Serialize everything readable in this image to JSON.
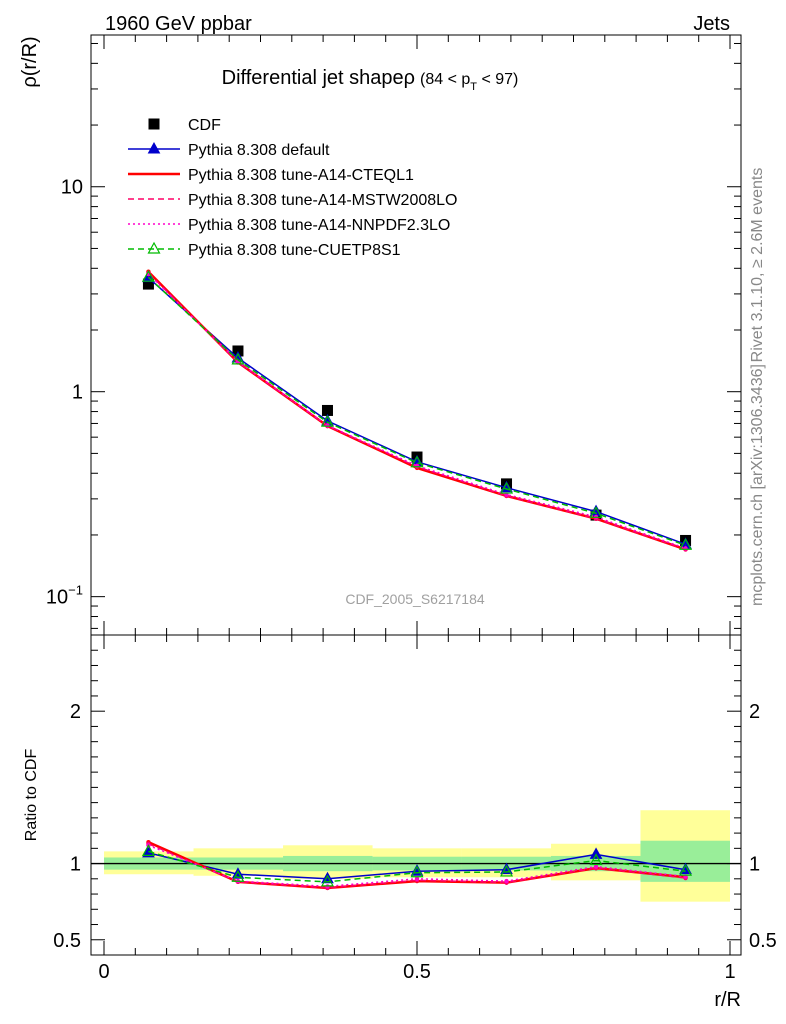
{
  "header": {
    "left": "1960 GeV ppbar",
    "right": "Jets"
  },
  "side_labels": {
    "rivet": "Rivet 3.1.10, ≥ 2.6M events",
    "mcplots": "mcplots.cern.ch [arXiv:1306.3436]"
  },
  "chart_data": [
    {
      "type": "line",
      "panel": "main",
      "title": "Differential jet shapeρ",
      "title_suffix": "(84 < p_T < 97)",
      "ylabel": "ρ(r/R)",
      "xlabel": "",
      "yscale": "log",
      "ylim": [
        0.065,
        55
      ],
      "xlim": [
        -0.02,
        1.02
      ],
      "ytick_labels": [
        "10^{-1}",
        "1",
        "10"
      ],
      "watermark": "CDF_2005_S6217184",
      "legend_position": "top-left",
      "x": [
        0.071,
        0.214,
        0.357,
        0.5,
        0.643,
        0.786,
        0.929
      ],
      "data": {
        "name": "CDF",
        "y": [
          3.35,
          1.58,
          0.81,
          0.48,
          0.355,
          0.25,
          0.188
        ]
      },
      "series": [
        {
          "name": "Pythia 8.308 default",
          "color": "#0000cc",
          "style": "solid-triangle",
          "y": [
            3.6,
            1.46,
            0.72,
            0.455,
            0.34,
            0.26,
            0.18
          ]
        },
        {
          "name": "Pythia 8.308 tune-A14-CTEQL1",
          "color": "#ff0000",
          "style": "solid-thick",
          "y": [
            3.85,
            1.39,
            0.68,
            0.425,
            0.31,
            0.24,
            0.17
          ]
        },
        {
          "name": "Pythia 8.308 tune-A14-MSTW2008LO",
          "color": "#ff0066",
          "style": "dashed",
          "y": [
            3.8,
            1.39,
            0.68,
            0.43,
            0.31,
            0.24,
            0.17
          ]
        },
        {
          "name": "Pythia 8.308 tune-A14-NNPDF2.3LO",
          "color": "#ff00cc",
          "style": "dotted",
          "y": [
            3.75,
            1.4,
            0.685,
            0.435,
            0.315,
            0.245,
            0.172
          ]
        },
        {
          "name": "Pythia 8.308 tune-CUETP8S1",
          "color": "#00bb00",
          "style": "dashed-open-triangle",
          "y": [
            3.62,
            1.43,
            0.71,
            0.45,
            0.335,
            0.255,
            0.178
          ]
        }
      ]
    },
    {
      "type": "line",
      "panel": "ratio",
      "ylabel": "Ratio to CDF",
      "xlabel": "r/R",
      "ylim": [
        0.4,
        2.5
      ],
      "xlim": [
        -0.02,
        1.02
      ],
      "yticks": [
        0.5,
        1,
        2
      ],
      "xticks": [
        0,
        0.5,
        1
      ],
      "x": [
        0.071,
        0.214,
        0.357,
        0.5,
        0.643,
        0.786,
        0.929
      ],
      "bands": [
        {
          "x0": 0.0,
          "x1": 0.143,
          "green": [
            0.96,
            1.04
          ],
          "yellow": [
            0.93,
            1.08
          ]
        },
        {
          "x0": 0.143,
          "x1": 0.286,
          "green": [
            0.96,
            1.04
          ],
          "yellow": [
            0.92,
            1.1
          ]
        },
        {
          "x0": 0.286,
          "x1": 0.429,
          "green": [
            0.95,
            1.05
          ],
          "yellow": [
            0.9,
            1.12
          ]
        },
        {
          "x0": 0.429,
          "x1": 0.571,
          "green": [
            0.955,
            1.045
          ],
          "yellow": [
            0.91,
            1.1
          ]
        },
        {
          "x0": 0.571,
          "x1": 0.714,
          "green": [
            0.955,
            1.045
          ],
          "yellow": [
            0.91,
            1.1
          ]
        },
        {
          "x0": 0.714,
          "x1": 0.857,
          "green": [
            0.95,
            1.05
          ],
          "yellow": [
            0.89,
            1.13
          ]
        },
        {
          "x0": 0.857,
          "x1": 1.0,
          "green": [
            0.88,
            1.15
          ],
          "yellow": [
            0.75,
            1.35
          ]
        }
      ],
      "series": [
        {
          "name": "Pythia 8.308 default",
          "color": "#0000cc",
          "style": "solid-triangle",
          "y": [
            1.07,
            0.93,
            0.9,
            0.95,
            0.96,
            1.06,
            0.96
          ]
        },
        {
          "name": "Pythia 8.308 tune-A14-CTEQL1",
          "color": "#ff0000",
          "style": "solid-thick",
          "y": [
            1.14,
            0.88,
            0.84,
            0.885,
            0.875,
            0.97,
            0.91
          ]
        },
        {
          "name": "Pythia 8.308 tune-A14-MSTW2008LO",
          "color": "#ff0066",
          "style": "dashed",
          "y": [
            1.13,
            0.88,
            0.84,
            0.89,
            0.875,
            0.97,
            0.905
          ]
        },
        {
          "name": "Pythia 8.308 tune-A14-NNPDF2.3LO",
          "color": "#ff00cc",
          "style": "dotted",
          "y": [
            1.12,
            0.885,
            0.85,
            0.9,
            0.885,
            0.98,
            0.915
          ]
        },
        {
          "name": "Pythia 8.308 tune-CUETP8S1",
          "color": "#00bb00",
          "style": "dashed-open-triangle",
          "y": [
            1.08,
            0.91,
            0.88,
            0.94,
            0.945,
            1.02,
            0.95
          ]
        }
      ]
    }
  ]
}
